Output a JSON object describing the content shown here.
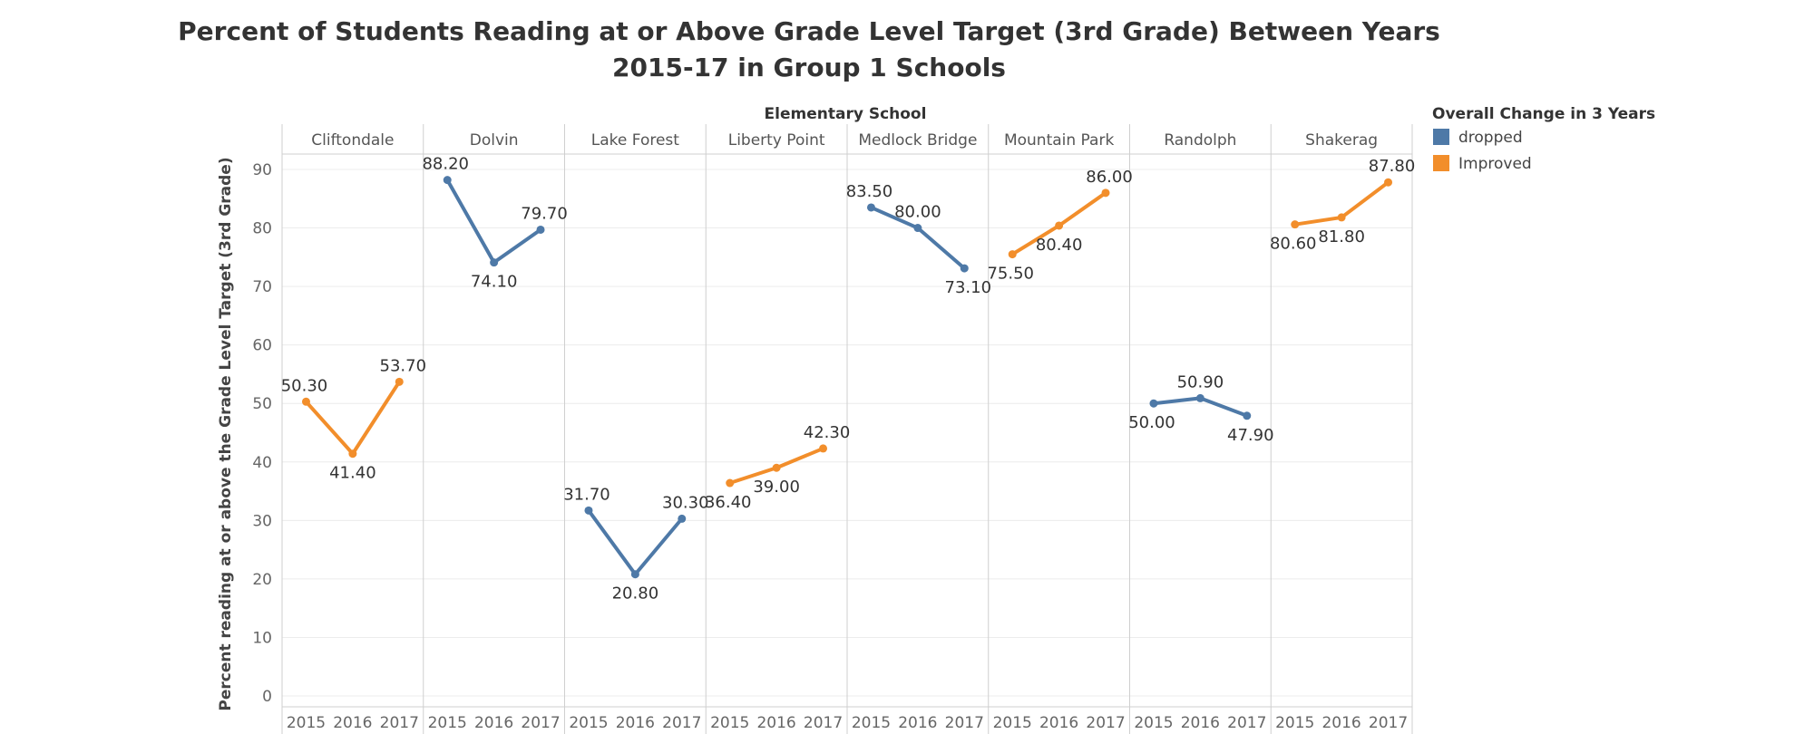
{
  "chart_data": {
    "type": "line",
    "title": "Percent of Students Reading at or Above Grade Level Target (3rd Grade) Between Years",
    "subtitle": "2015-17 in Group 1 Schools",
    "column_header": "Elementary School",
    "ylabel": "Percent reading at or above the Grade Level Target (3rd Grade)",
    "x": [
      "2015",
      "2016",
      "2017"
    ],
    "yticks": [
      "0",
      "10",
      "20",
      "30",
      "40",
      "50",
      "60",
      "70",
      "80",
      "90"
    ],
    "ylim": [
      0,
      90
    ],
    "grid": true,
    "legend": {
      "title": "Overall Change in 3 Years",
      "placement": "top-right",
      "entries": [
        {
          "label": "dropped",
          "color": "#4e79a7"
        },
        {
          "label": "Improved",
          "color": "#f28e2b"
        }
      ]
    },
    "schools": [
      {
        "name": "Cliftondale",
        "change": "Improved",
        "values": [
          50.3,
          41.4,
          53.7
        ],
        "labels": [
          "50.30",
          "41.40",
          "53.70"
        ]
      },
      {
        "name": "Dolvin",
        "change": "dropped",
        "values": [
          88.2,
          74.1,
          79.7
        ],
        "labels": [
          "88.20",
          "74.10",
          "79.70"
        ]
      },
      {
        "name": "Lake Forest",
        "change": "dropped",
        "values": [
          31.7,
          20.8,
          30.3
        ],
        "labels": [
          "31.70",
          "20.80",
          "30.30"
        ]
      },
      {
        "name": "Liberty Point",
        "change": "Improved",
        "values": [
          36.4,
          39.0,
          42.3
        ],
        "labels": [
          "36.40",
          "39.00",
          "42.30"
        ]
      },
      {
        "name": "Medlock Bridge",
        "change": "dropped",
        "values": [
          83.5,
          80.0,
          73.1
        ],
        "labels": [
          "83.50",
          "80.00",
          "73.10"
        ]
      },
      {
        "name": "Mountain Park",
        "change": "Improved",
        "values": [
          75.5,
          80.4,
          86.0
        ],
        "labels": [
          "75.50",
          "80.40",
          "86.00"
        ]
      },
      {
        "name": "Randolph",
        "change": "dropped",
        "values": [
          50.0,
          50.9,
          47.9
        ],
        "labels": [
          "50.00",
          "50.90",
          "47.90"
        ]
      },
      {
        "name": "Shakerag",
        "change": "Improved",
        "values": [
          80.6,
          81.8,
          87.8
        ],
        "labels": [
          "80.60",
          "81.80",
          "87.80"
        ]
      }
    ]
  }
}
